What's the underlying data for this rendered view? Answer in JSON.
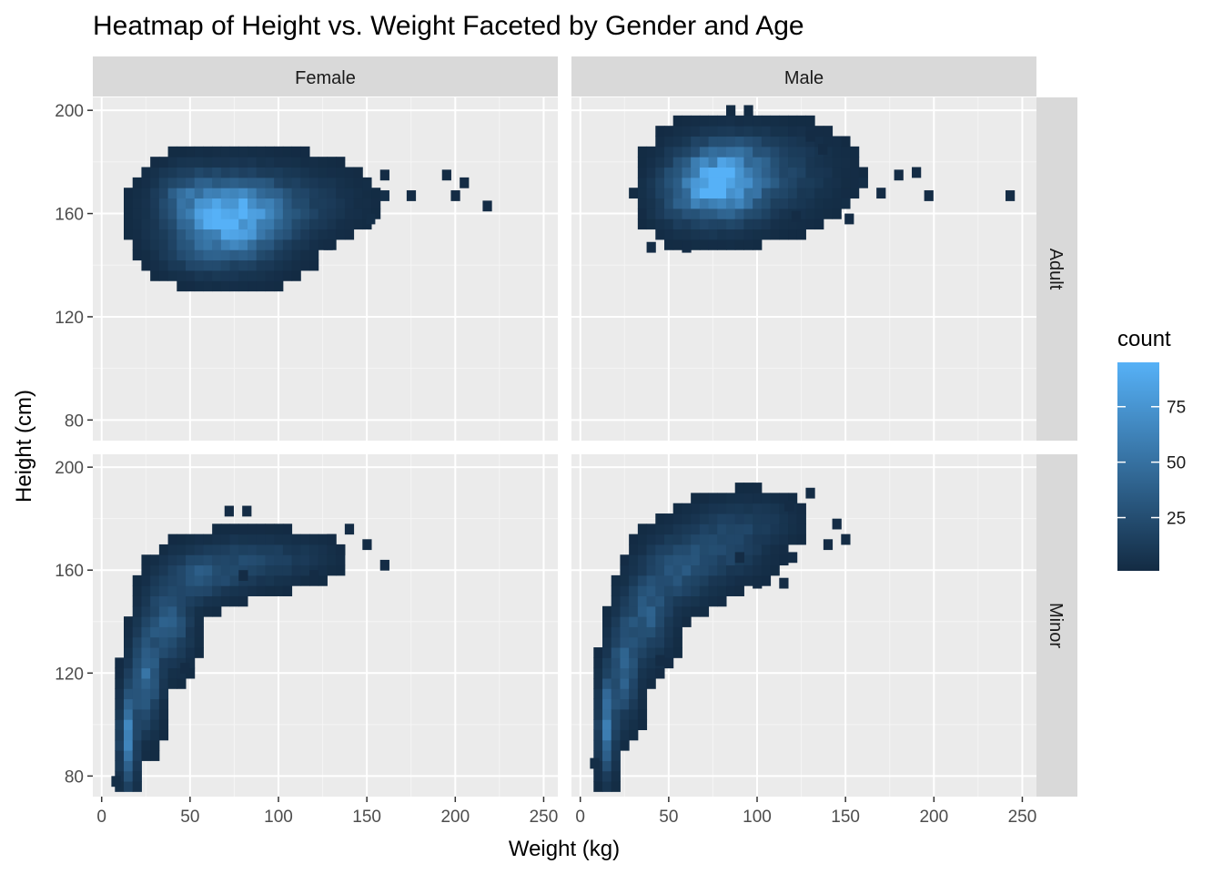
{
  "chart_data": {
    "type": "heatmap",
    "title": "Heatmap of Height vs. Weight Faceted by Gender and Age",
    "xlabel": "Weight (kg)",
    "ylabel": "Height (cm)",
    "xlim": [
      -5,
      258
    ],
    "ylim": [
      72,
      205
    ],
    "x_ticks": [
      0,
      50,
      100,
      150,
      200,
      250
    ],
    "y_ticks": [
      80,
      120,
      160,
      200
    ],
    "bin_width": {
      "x": 5,
      "y": 4
    },
    "facet_cols": [
      "Female",
      "Male"
    ],
    "facet_rows": [
      "Adult",
      "Minor"
    ],
    "legend": {
      "title": "count",
      "ticks": [
        25,
        50,
        75
      ],
      "min": 1,
      "max": 95,
      "low_color": "#132B43",
      "high_color": "#56B1F7",
      "position": "right"
    },
    "grid": true,
    "panels": [
      {
        "col": "Female",
        "row": "Adult",
        "blobs": [
          [
            72,
            158,
            20,
            10,
            95
          ],
          [
            45,
            168,
            10,
            6,
            18
          ],
          [
            110,
            165,
            22,
            8,
            14
          ],
          [
            50,
            143,
            10,
            5,
            8
          ]
        ],
        "points": [
          [
            150,
            171,
            3
          ],
          [
            160,
            167,
            4
          ],
          [
            175,
            167,
            2
          ],
          [
            200,
            167,
            2
          ],
          [
            218,
            163,
            2
          ],
          [
            195,
            175,
            2
          ],
          [
            152,
            158,
            3
          ],
          [
            205,
            172,
            2
          ],
          [
            160,
            175,
            2
          ],
          [
            128,
            148,
            2
          ]
        ]
      },
      {
        "col": "Male",
        "row": "Adult",
        "blobs": [
          [
            78,
            172,
            16,
            9,
            93
          ],
          [
            108,
            175,
            22,
            10,
            18
          ],
          [
            55,
            165,
            10,
            7,
            12
          ],
          [
            95,
            185,
            20,
            5,
            6
          ]
        ],
        "points": [
          [
            243,
            167,
            2
          ],
          [
            197,
            167,
            2
          ],
          [
            180,
            175,
            2
          ],
          [
            190,
            176,
            2
          ],
          [
            170,
            168,
            2
          ],
          [
            160,
            172,
            3
          ],
          [
            150,
            164,
            3
          ],
          [
            152,
            158,
            2
          ],
          [
            40,
            147,
            2
          ],
          [
            60,
            147,
            2
          ],
          [
            130,
            190,
            2
          ],
          [
            137,
            185,
            2
          ],
          [
            122,
            159,
            2
          ]
        ]
      },
      {
        "col": "Female",
        "row": "Minor",
        "blobs": [
          [
            15,
            95,
            3,
            12,
            60
          ],
          [
            25,
            118,
            5,
            12,
            45
          ],
          [
            38,
            140,
            8,
            10,
            35
          ],
          [
            55,
            158,
            12,
            6,
            28
          ],
          [
            80,
            163,
            15,
            6,
            20
          ],
          [
            110,
            165,
            15,
            5,
            10
          ]
        ],
        "points": [
          [
            8,
            78,
            3
          ],
          [
            72,
            183,
            2
          ],
          [
            82,
            183,
            2
          ],
          [
            140,
            176,
            2
          ],
          [
            130,
            172,
            2
          ],
          [
            135,
            168,
            2
          ],
          [
            150,
            170,
            2
          ],
          [
            160,
            162,
            2
          ],
          [
            80,
            158,
            2
          ],
          [
            120,
            158,
            2
          ],
          [
            47,
            122,
            2
          ]
        ]
      },
      {
        "col": "Male",
        "row": "Minor",
        "blobs": [
          [
            15,
            100,
            3,
            12,
            55
          ],
          [
            25,
            122,
            5,
            12,
            42
          ],
          [
            38,
            142,
            8,
            10,
            34
          ],
          [
            55,
            160,
            12,
            8,
            28
          ],
          [
            80,
            170,
            15,
            8,
            22
          ],
          [
            100,
            180,
            15,
            6,
            10
          ]
        ],
        "points": [
          [
            8,
            85,
            3
          ],
          [
            145,
            178,
            2
          ],
          [
            150,
            172,
            2
          ],
          [
            140,
            170,
            2
          ],
          [
            118,
            185,
            2
          ],
          [
            130,
            190,
            2
          ],
          [
            120,
            165,
            2
          ],
          [
            115,
            155,
            2
          ],
          [
            100,
            155,
            2
          ],
          [
            90,
            165,
            2
          ],
          [
            45,
            125,
            2
          ]
        ]
      }
    ]
  }
}
